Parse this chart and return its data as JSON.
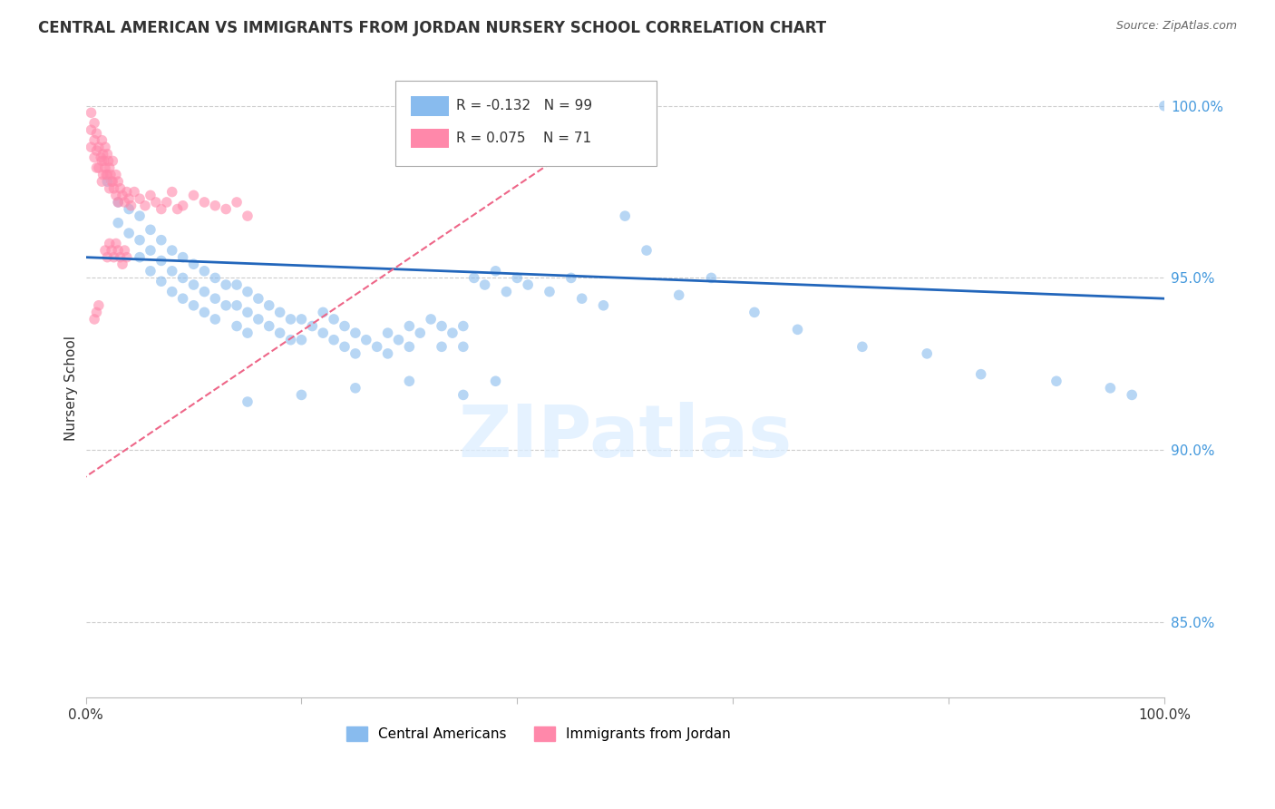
{
  "title": "CENTRAL AMERICAN VS IMMIGRANTS FROM JORDAN NURSERY SCHOOL CORRELATION CHART",
  "source": "Source: ZipAtlas.com",
  "ylabel": "Nursery School",
  "watermark": "ZIPatlas",
  "xlim": [
    0.0,
    1.0
  ],
  "ylim": [
    0.828,
    1.008
  ],
  "yticks": [
    0.85,
    0.9,
    0.95,
    1.0
  ],
  "ytick_labels": [
    "85.0%",
    "90.0%",
    "95.0%",
    "100.0%"
  ],
  "xtick_labels": [
    "0.0%",
    "",
    "",
    "",
    "",
    "100.0%"
  ],
  "color_blue": "#88BBEE",
  "color_pink": "#FF88AA",
  "trend_blue": "#2266BB",
  "trend_pink": "#EE6688",
  "scatter_blue_alpha": 0.6,
  "scatter_pink_alpha": 0.6,
  "scatter_size": 70,
  "blue_trend_start_y": 0.956,
  "blue_trend_end_y": 0.944,
  "pink_trend_x0": -0.02,
  "pink_trend_y0": 0.888,
  "pink_trend_x1": 0.5,
  "pink_trend_y1": 0.998,
  "blue_points_x": [
    0.02,
    0.03,
    0.03,
    0.04,
    0.04,
    0.05,
    0.05,
    0.05,
    0.06,
    0.06,
    0.06,
    0.07,
    0.07,
    0.07,
    0.08,
    0.08,
    0.08,
    0.09,
    0.09,
    0.09,
    0.1,
    0.1,
    0.1,
    0.11,
    0.11,
    0.11,
    0.12,
    0.12,
    0.12,
    0.13,
    0.13,
    0.14,
    0.14,
    0.14,
    0.15,
    0.15,
    0.15,
    0.16,
    0.16,
    0.17,
    0.17,
    0.18,
    0.18,
    0.19,
    0.19,
    0.2,
    0.2,
    0.21,
    0.22,
    0.22,
    0.23,
    0.23,
    0.24,
    0.24,
    0.25,
    0.25,
    0.26,
    0.27,
    0.28,
    0.28,
    0.29,
    0.3,
    0.3,
    0.31,
    0.32,
    0.33,
    0.33,
    0.34,
    0.35,
    0.35,
    0.36,
    0.37,
    0.38,
    0.39,
    0.4,
    0.41,
    0.43,
    0.45,
    0.46,
    0.48,
    0.5,
    0.52,
    0.55,
    0.58,
    0.62,
    0.66,
    0.72,
    0.78,
    0.83,
    0.9,
    0.95,
    0.97,
    1.0,
    0.35,
    0.38,
    0.3,
    0.25,
    0.2,
    0.15
  ],
  "blue_points_y": [
    0.978,
    0.972,
    0.966,
    0.97,
    0.963,
    0.968,
    0.961,
    0.956,
    0.964,
    0.958,
    0.952,
    0.961,
    0.955,
    0.949,
    0.958,
    0.952,
    0.946,
    0.956,
    0.95,
    0.944,
    0.954,
    0.948,
    0.942,
    0.952,
    0.946,
    0.94,
    0.95,
    0.944,
    0.938,
    0.948,
    0.942,
    0.948,
    0.942,
    0.936,
    0.946,
    0.94,
    0.934,
    0.944,
    0.938,
    0.942,
    0.936,
    0.94,
    0.934,
    0.938,
    0.932,
    0.938,
    0.932,
    0.936,
    0.94,
    0.934,
    0.938,
    0.932,
    0.936,
    0.93,
    0.934,
    0.928,
    0.932,
    0.93,
    0.934,
    0.928,
    0.932,
    0.936,
    0.93,
    0.934,
    0.938,
    0.936,
    0.93,
    0.934,
    0.936,
    0.93,
    0.95,
    0.948,
    0.952,
    0.946,
    0.95,
    0.948,
    0.946,
    0.95,
    0.944,
    0.942,
    0.968,
    0.958,
    0.945,
    0.95,
    0.94,
    0.935,
    0.93,
    0.928,
    0.922,
    0.92,
    0.918,
    0.916,
    1.0,
    0.916,
    0.92,
    0.92,
    0.918,
    0.916,
    0.914
  ],
  "pink_points_x": [
    0.005,
    0.005,
    0.005,
    0.008,
    0.008,
    0.008,
    0.01,
    0.01,
    0.01,
    0.012,
    0.012,
    0.014,
    0.015,
    0.015,
    0.015,
    0.016,
    0.016,
    0.017,
    0.018,
    0.018,
    0.019,
    0.02,
    0.02,
    0.021,
    0.022,
    0.022,
    0.023,
    0.024,
    0.025,
    0.025,
    0.026,
    0.028,
    0.028,
    0.03,
    0.03,
    0.032,
    0.034,
    0.036,
    0.038,
    0.04,
    0.042,
    0.045,
    0.05,
    0.055,
    0.06,
    0.065,
    0.07,
    0.075,
    0.08,
    0.085,
    0.09,
    0.1,
    0.11,
    0.12,
    0.13,
    0.14,
    0.15,
    0.018,
    0.02,
    0.022,
    0.024,
    0.026,
    0.028,
    0.03,
    0.032,
    0.034,
    0.036,
    0.038,
    0.008,
    0.01,
    0.012
  ],
  "pink_points_y": [
    0.998,
    0.993,
    0.988,
    0.995,
    0.99,
    0.985,
    0.992,
    0.987,
    0.982,
    0.988,
    0.982,
    0.985,
    0.99,
    0.984,
    0.978,
    0.986,
    0.98,
    0.984,
    0.988,
    0.982,
    0.98,
    0.986,
    0.98,
    0.984,
    0.982,
    0.976,
    0.98,
    0.978,
    0.984,
    0.978,
    0.976,
    0.98,
    0.974,
    0.978,
    0.972,
    0.976,
    0.974,
    0.972,
    0.975,
    0.973,
    0.971,
    0.975,
    0.973,
    0.971,
    0.974,
    0.972,
    0.97,
    0.972,
    0.975,
    0.97,
    0.971,
    0.974,
    0.972,
    0.971,
    0.97,
    0.972,
    0.968,
    0.958,
    0.956,
    0.96,
    0.958,
    0.956,
    0.96,
    0.958,
    0.956,
    0.954,
    0.958,
    0.956,
    0.938,
    0.94,
    0.942
  ]
}
